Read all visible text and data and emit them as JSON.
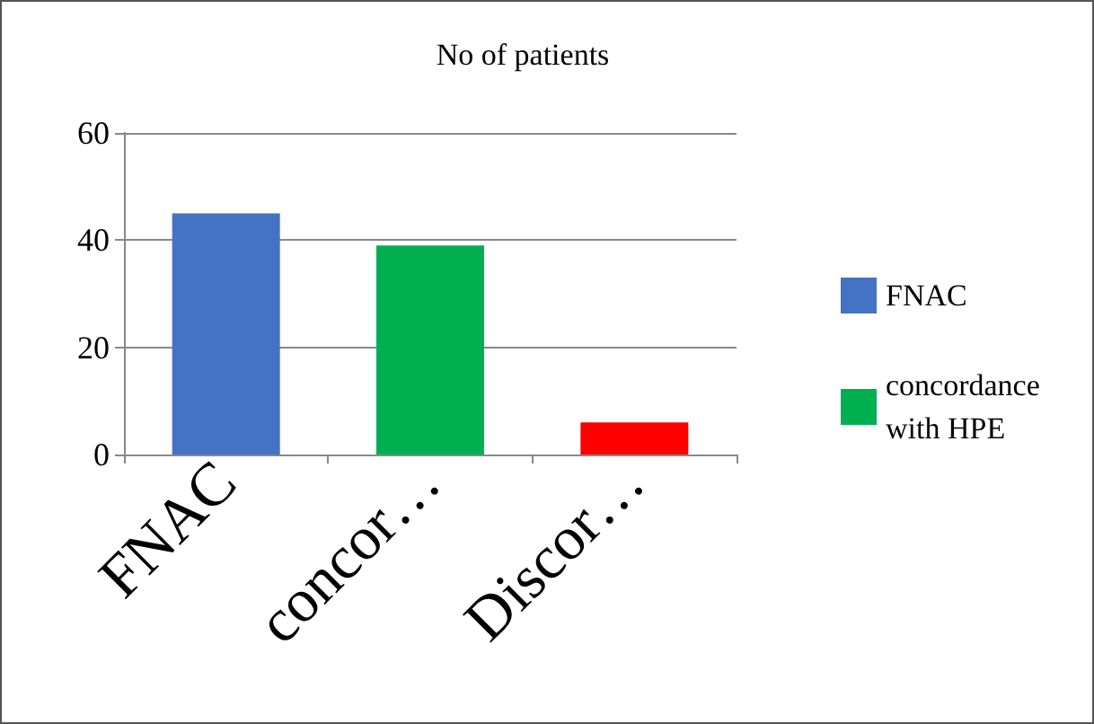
{
  "chart_data": {
    "type": "bar",
    "title": "No of patients",
    "categories": [
      "FNAC",
      "concor…",
      "Discor…"
    ],
    "series": [
      {
        "name": "FNAC",
        "color": "#4472c4",
        "values": [
          45,
          null,
          null
        ]
      },
      {
        "name": "concordance with HPE",
        "color": "#00b050",
        "values": [
          null,
          39,
          null
        ]
      },
      {
        "color": "#ff0000",
        "values": [
          null,
          null,
          6
        ]
      }
    ],
    "stacked": true,
    "ylim": [
      0,
      60
    ],
    "yticks": [
      0,
      20,
      40,
      60
    ],
    "grid": "y",
    "legend": "right"
  }
}
